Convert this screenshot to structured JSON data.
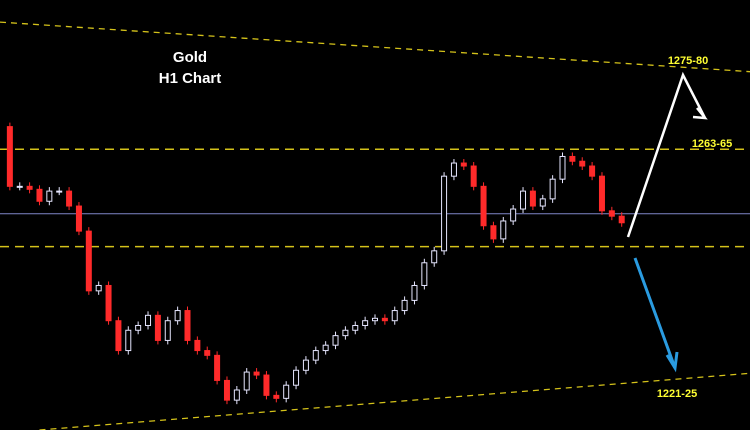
{
  "chart_data": {
    "type": "candlestick",
    "title": "Gold",
    "subtitle": "H1 Chart",
    "x": [
      0,
      1,
      2,
      3,
      4,
      5,
      6,
      7,
      8,
      9,
      10,
      11,
      12,
      13,
      14,
      15,
      16,
      17,
      18,
      19,
      20,
      21,
      22,
      23,
      24,
      25,
      26,
      27,
      28,
      29,
      30,
      31,
      32,
      33,
      34,
      35,
      36,
      37,
      38,
      39,
      40,
      41,
      42,
      43,
      44,
      45,
      46,
      47,
      48,
      49,
      50,
      51,
      52,
      53,
      54,
      55,
      56,
      57,
      58,
      59,
      60,
      61,
      62,
      63
    ],
    "series": [
      {
        "name": "Gold H1",
        "up_color": "#e6e6ff",
        "down_color": "#ff2a2a",
        "values": [
          1266.8,
          1256.8,
          1256.8,
          1256.3,
          1254.3,
          1256,
          1256,
          1253.5,
          1249.3,
          1239.3,
          1240.2,
          1234.3,
          1229.3,
          1232.7,
          1233.5,
          1235.2,
          1231,
          1234.3,
          1236,
          1231,
          1229.3,
          1228.5,
          1224.3,
          1221,
          1222.7,
          1225.7,
          1225.2,
          1221.8,
          1221.3,
          1223.5,
          1226,
          1227.7,
          1229.3,
          1230.2,
          1231.8,
          1232.7,
          1233.5,
          1234.3,
          1234.7,
          1234.3,
          1236,
          1237.7,
          1240.2,
          1244,
          1246,
          1258.5,
          1260.7,
          1260.2,
          1256.8,
          1250.2,
          1248,
          1251,
          1253,
          1256,
          1253.5,
          1254.7,
          1258,
          1261.8,
          1261,
          1260.2,
          1258.5,
          1252.7,
          1251.8,
          1250.7
        ]
      }
    ],
    "xlim": [
      0,
      76
    ],
    "ylim": [
      1216,
      1288
    ],
    "levels": [
      {
        "value": 1263,
        "color": "#d4c21a",
        "style": "dashed"
      },
      {
        "value": 1252.2,
        "color": "#7f86c8",
        "style": "solid"
      },
      {
        "value": 1246.7,
        "color": "#d4c21a",
        "style": "dashed"
      }
    ],
    "trendlines": [
      {
        "x": [
          0,
          76
        ],
        "values": [
          1284.3,
          1276
        ],
        "color": "#d4c21a"
      },
      {
        "x": [
          4,
          76
        ],
        "values": [
          1216,
          1225.5
        ],
        "color": "#d4c21a"
      }
    ],
    "level_labels": [
      "1275-80",
      "1263-65",
      "1221-25"
    ]
  }
}
